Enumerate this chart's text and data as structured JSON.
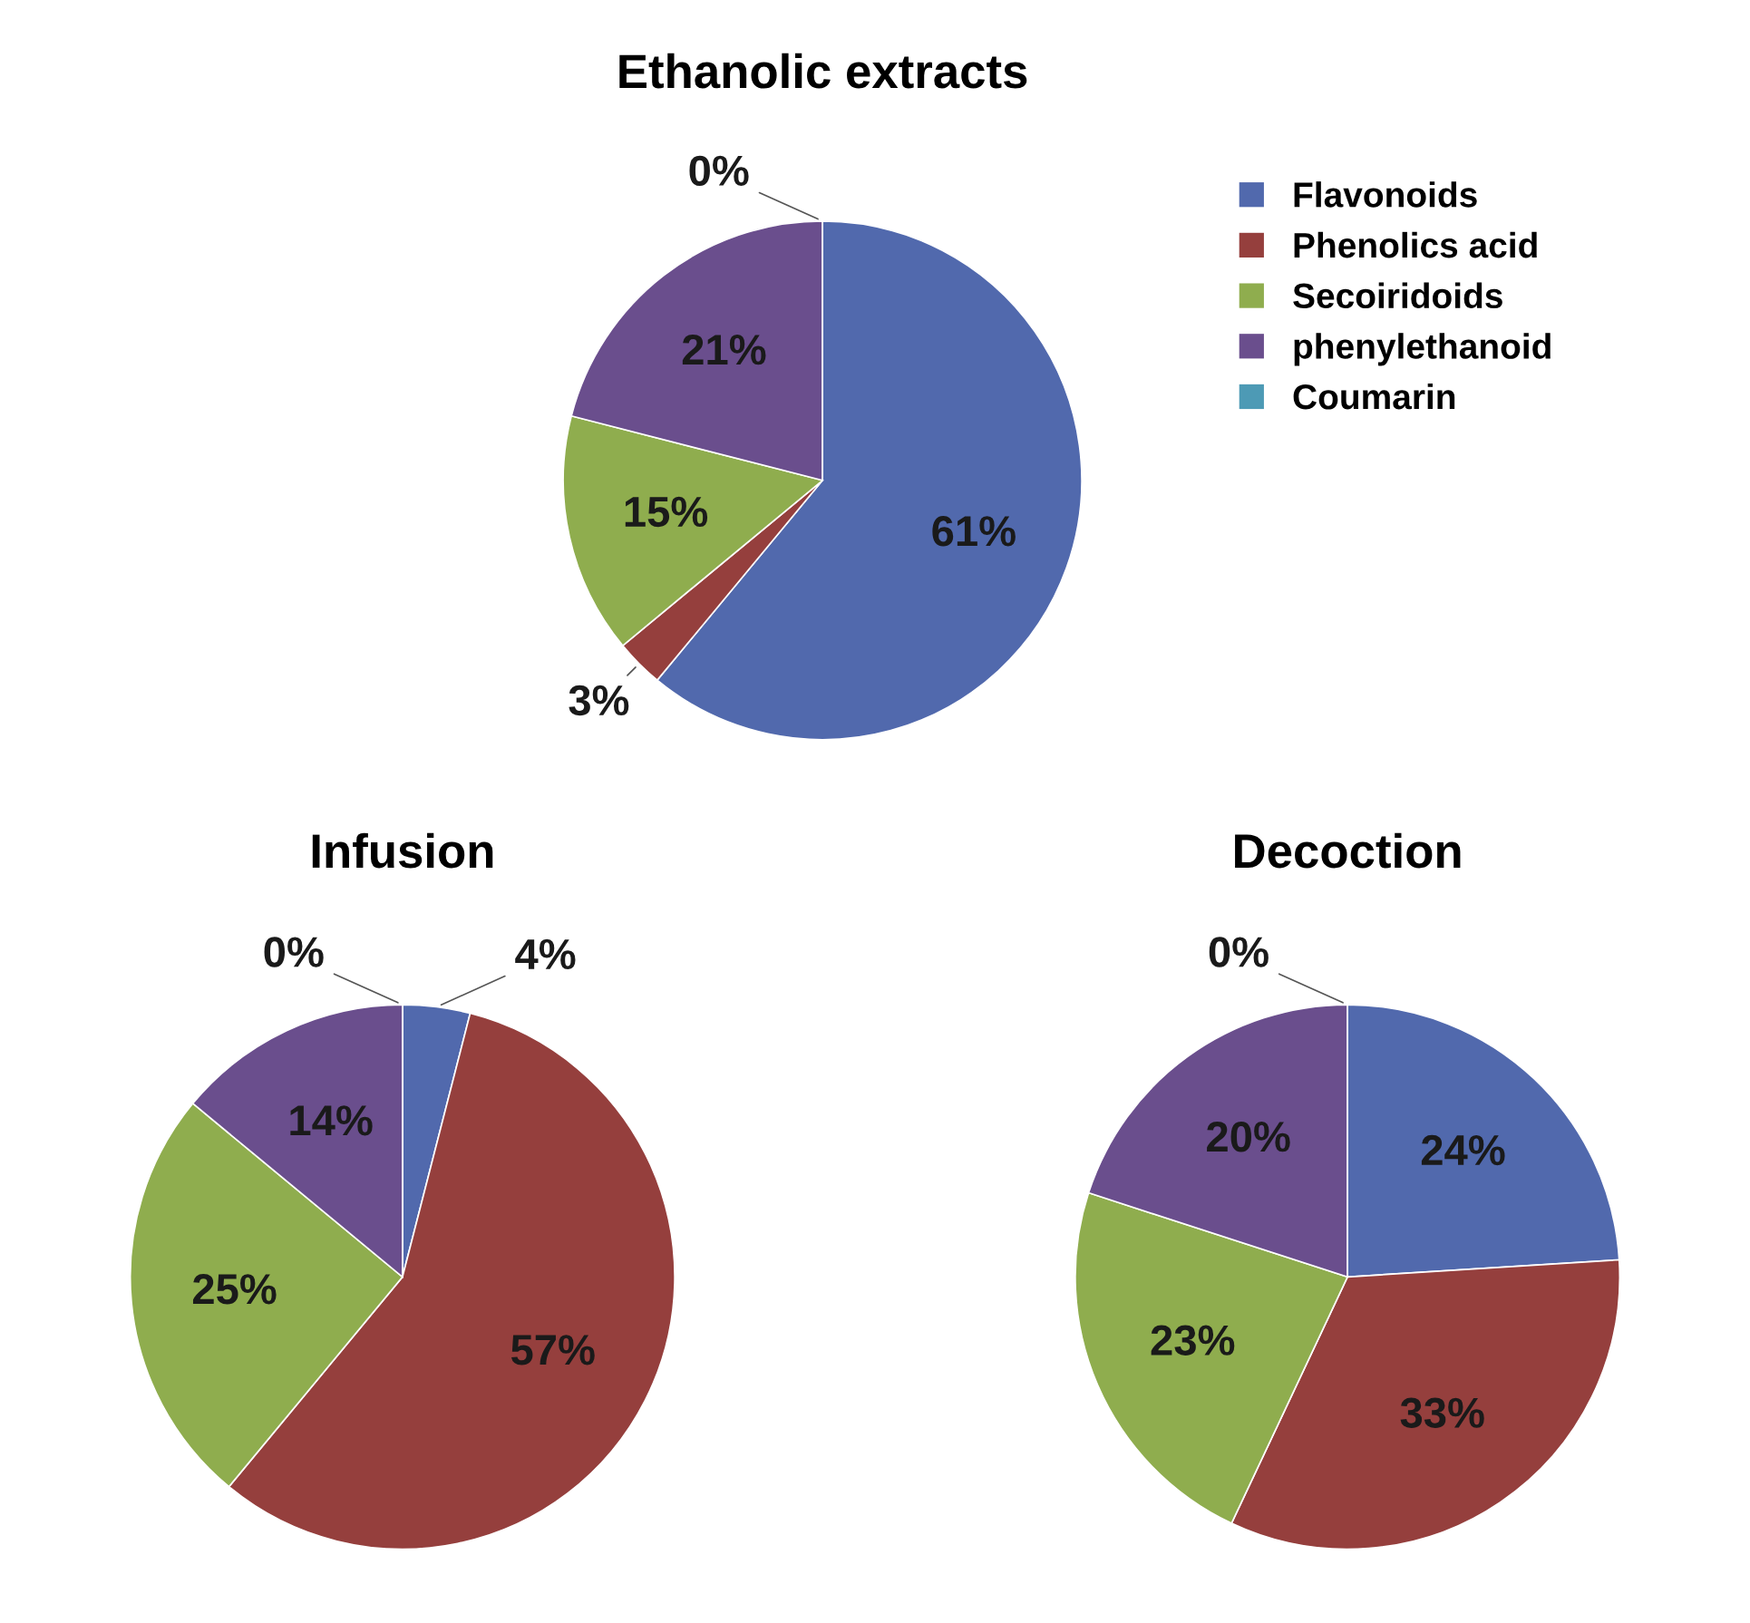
{
  "chart_data": [
    {
      "type": "pie",
      "title": "Ethanolic extracts",
      "categories": [
        "Flavonoids",
        "Phenolics acid",
        "Secoiridoids",
        "phenylethanoid",
        "Coumarin"
      ],
      "values": [
        61,
        3,
        15,
        21,
        0
      ],
      "value_labels": [
        "61%",
        "3%",
        "15%",
        "21%",
        "0%"
      ],
      "colors": [
        "#5169ad",
        "#953f3d",
        "#8fad4e",
        "#6a4e8d",
        "#4d9ab5"
      ],
      "legend": "right"
    },
    {
      "type": "pie",
      "title": "Infusion",
      "categories": [
        null,
        null,
        null,
        null,
        null
      ],
      "values": [
        4,
        57,
        25,
        14,
        0
      ],
      "value_labels": [
        "4%",
        "57%",
        "25%",
        "14%",
        "0%"
      ],
      "colors": [
        "#5169ad",
        "#953f3d",
        "#8fad4e",
        "#6a4e8d",
        "#4d9ab5"
      ]
    },
    {
      "type": "pie",
      "title": "Decoction",
      "categories": [
        null,
        null,
        null,
        null,
        null
      ],
      "values": [
        24,
        33,
        23,
        20,
        0
      ],
      "value_labels": [
        "24%",
        "33%",
        "23%",
        "20%",
        "0%"
      ],
      "colors": [
        "#5169ad",
        "#953f3d",
        "#8fad4e",
        "#6a4e8d",
        "#4d9ab5"
      ]
    }
  ]
}
